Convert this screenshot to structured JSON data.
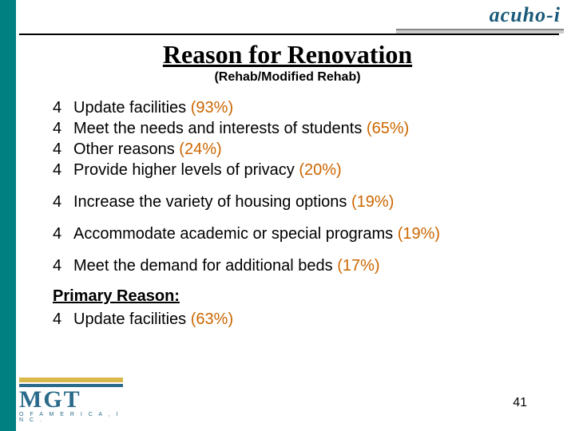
{
  "header": {
    "logo_text": "acuho-i"
  },
  "title": "Reason for Renovation",
  "subtitle": "(Rehab/Modified Rehab)",
  "bullets_group1": [
    {
      "text": "Update facilities ",
      "pct": "(93%)"
    },
    {
      "text": "Meet the needs and interests of students ",
      "pct": "(65%)"
    },
    {
      "text": "Other reasons ",
      "pct": "(24%)"
    },
    {
      "text": "Provide higher levels of privacy ",
      "pct": "(20%)"
    }
  ],
  "bullets_group2": [
    {
      "text": "Increase the variety of housing options ",
      "pct": "(19%)"
    },
    {
      "text": "Accommodate academic or special programs ",
      "pct": "(19%)"
    },
    {
      "text": "Meet the demand for additional beds ",
      "pct": "(17%)"
    }
  ],
  "primary": {
    "heading": "Primary Reason:",
    "bullet_text": "Update facilities ",
    "bullet_pct": "(63%)"
  },
  "footer": {
    "mgt_text": "MGT",
    "mgt_sub": "O F  A M E R I C A ,  I N C .",
    "page_number": "41"
  },
  "colors": {
    "teal": "#008080",
    "percent": "#cc6600",
    "logo_blue": "#2a6a8a",
    "logo_gold": "#d9b84a"
  },
  "bullet_glyph": "4"
}
